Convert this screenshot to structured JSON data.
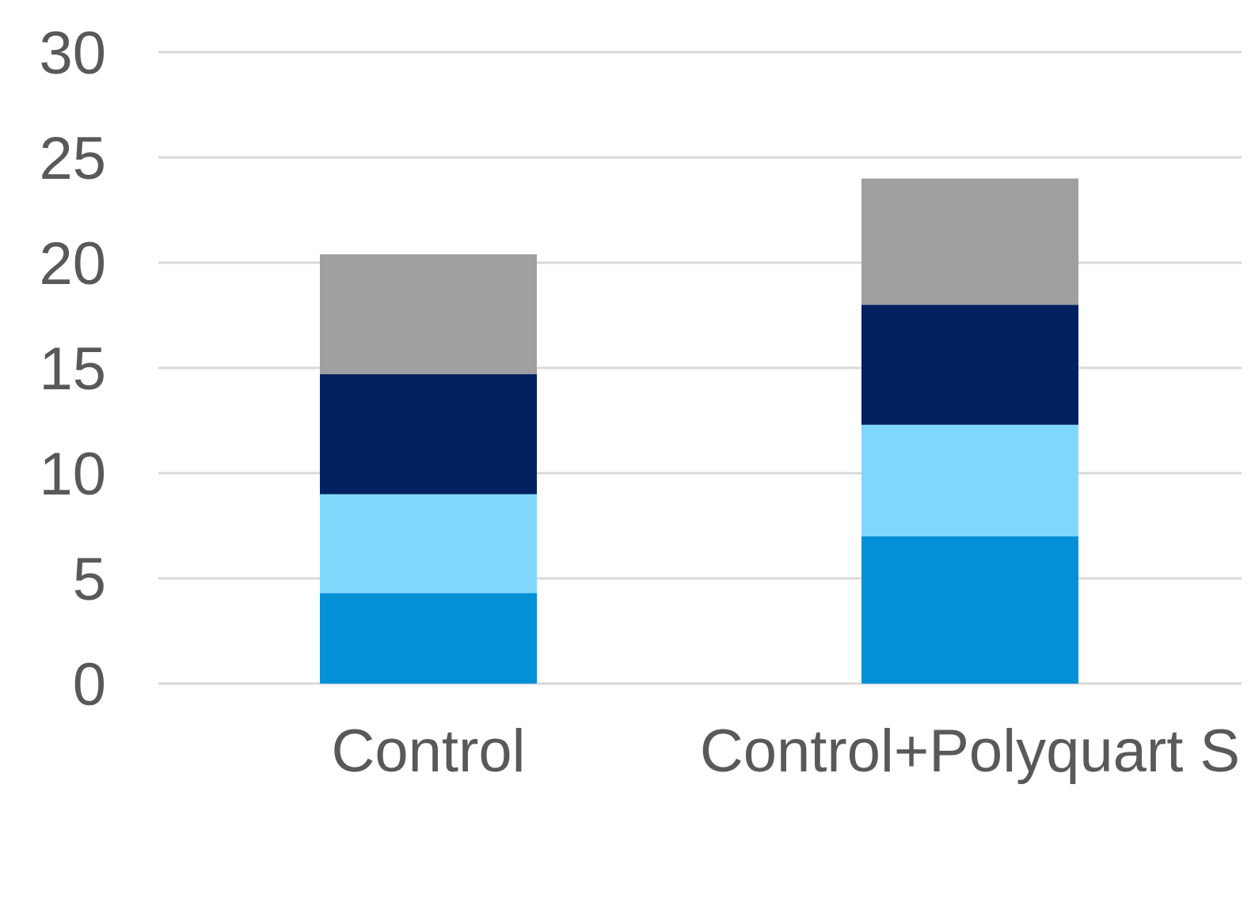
{
  "chart_data": {
    "type": "bar",
    "stacked": true,
    "categories": [
      "Control",
      "Control+Polyquart S"
    ],
    "series": [
      {
        "color": "#0390d6",
        "values": [
          4.3,
          7.0
        ]
      },
      {
        "color": "#80d7fc",
        "values": [
          4.7,
          5.3
        ]
      },
      {
        "color": "#002060",
        "values": [
          5.7,
          5.7
        ]
      },
      {
        "color": "#a0a0a0",
        "values": [
          5.7,
          6.0
        ]
      }
    ],
    "yticks": [
      "0",
      "5",
      "10",
      "15",
      "20",
      "25",
      "30"
    ],
    "ylim": [
      0,
      30
    ],
    "grid": true,
    "legend": false,
    "title": "",
    "xlabel": "",
    "ylabel": ""
  }
}
